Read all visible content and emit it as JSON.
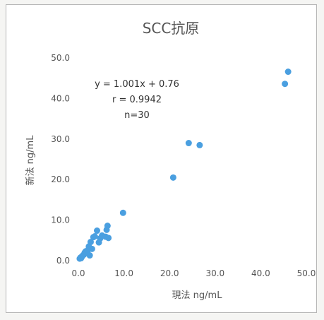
{
  "chart_data": {
    "type": "scatter",
    "title": "SCC抗原",
    "xlabel": "現法  ng/mL",
    "ylabel": "新法  ng/mL",
    "xlim": [
      0,
      50
    ],
    "ylim": [
      0,
      50
    ],
    "x_ticks": [
      "0.0",
      "10.0",
      "20.0",
      "30.0",
      "40.0",
      "50.0"
    ],
    "y_ticks": [
      "0.0",
      "10.0",
      "20.0",
      "30.0",
      "40.0",
      "50.0"
    ],
    "grid": false,
    "legend": "none",
    "series_color": "#4a9fe0",
    "annotations": [
      "y = 1.001x + 0.76",
      "r = 0.9942",
      "n=30"
    ],
    "points": [
      {
        "x": 0.3,
        "y": 0.5
      },
      {
        "x": 0.5,
        "y": 0.8
      },
      {
        "x": 0.6,
        "y": 0.6
      },
      {
        "x": 0.8,
        "y": 1.0
      },
      {
        "x": 1.0,
        "y": 1.3
      },
      {
        "x": 1.2,
        "y": 1.5
      },
      {
        "x": 1.4,
        "y": 2.0
      },
      {
        "x": 1.6,
        "y": 2.3
      },
      {
        "x": 1.9,
        "y": 1.8
      },
      {
        "x": 2.1,
        "y": 2.6
      },
      {
        "x": 2.3,
        "y": 3.5
      },
      {
        "x": 2.5,
        "y": 1.3
      },
      {
        "x": 2.7,
        "y": 4.6
      },
      {
        "x": 3.0,
        "y": 2.9
      },
      {
        "x": 3.3,
        "y": 5.8
      },
      {
        "x": 3.6,
        "y": 6.0
      },
      {
        "x": 4.1,
        "y": 7.4
      },
      {
        "x": 4.5,
        "y": 4.5
      },
      {
        "x": 4.8,
        "y": 5.5
      },
      {
        "x": 5.2,
        "y": 6.2
      },
      {
        "x": 6.0,
        "y": 5.9
      },
      {
        "x": 6.2,
        "y": 7.6
      },
      {
        "x": 6.4,
        "y": 8.6
      },
      {
        "x": 6.6,
        "y": 5.6
      },
      {
        "x": 9.8,
        "y": 11.8
      },
      {
        "x": 20.8,
        "y": 20.5
      },
      {
        "x": 24.2,
        "y": 29.0
      },
      {
        "x": 26.6,
        "y": 28.5
      },
      {
        "x": 45.3,
        "y": 43.6
      },
      {
        "x": 46.0,
        "y": 46.6
      }
    ]
  }
}
